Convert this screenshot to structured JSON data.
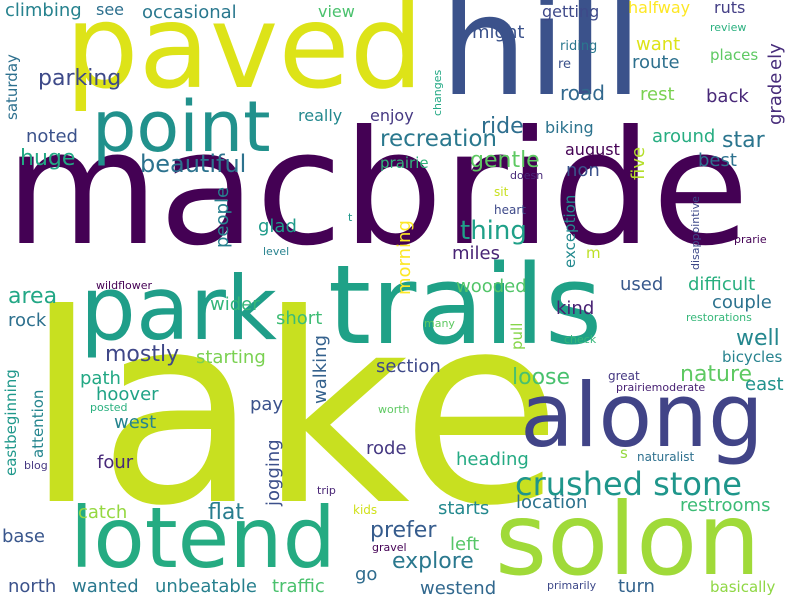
{
  "words": [
    {
      "text": "macbride",
      "color": "#440154",
      "rotate": false
    },
    {
      "text": "lake",
      "color": "#c8e020",
      "rotate": false
    },
    {
      "text": "trails",
      "color": "#1fa187",
      "rotate": false
    },
    {
      "text": "paved",
      "color": "#dde318",
      "rotate": false
    },
    {
      "text": "hill",
      "color": "#3b528b",
      "rotate": false
    },
    {
      "text": "point",
      "color": "#21918c",
      "rotate": false
    },
    {
      "text": "park",
      "color": "#1f9e89",
      "rotate": false
    },
    {
      "text": "along",
      "color": "#414487",
      "rotate": false
    },
    {
      "text": "solon",
      "color": "#a0da39",
      "rotate": false
    },
    {
      "text": "lotend",
      "color": "#25ab82",
      "rotate": false
    },
    {
      "text": "crushed stone",
      "color": "#1f968b",
      "rotate": false
    },
    {
      "text": "recreation",
      "color": "#2a788e",
      "rotate": false
    },
    {
      "text": "beautiful",
      "color": "#2c728e",
      "rotate": false
    },
    {
      "text": "huge",
      "color": "#22a884",
      "rotate": false
    },
    {
      "text": "gentle",
      "color": "#5ec962",
      "rotate": false
    },
    {
      "text": "thing",
      "color": "#1fa088",
      "rotate": false
    },
    {
      "text": "explore",
      "color": "#2a788e",
      "rotate": false
    },
    {
      "text": "prefer",
      "color": "#365c8d",
      "rotate": false
    },
    {
      "text": "nature",
      "color": "#5ec962",
      "rotate": false
    },
    {
      "text": "loose",
      "color": "#48c16e",
      "rotate": false
    },
    {
      "text": "mostly",
      "color": "#3f4788",
      "rotate": false
    },
    {
      "text": "area",
      "color": "#22a785",
      "rotate": false
    },
    {
      "text": "flat",
      "color": "#287d8e",
      "rotate": false
    },
    {
      "text": "ride",
      "color": "#2e6e8e",
      "rotate": false
    },
    {
      "text": "parking",
      "color": "#3e4a89",
      "rotate": false
    },
    {
      "text": "road",
      "color": "#31688e",
      "rotate": false
    },
    {
      "text": "route",
      "color": "#2d708e",
      "rotate": false
    },
    {
      "text": "rest",
      "color": "#7ad151",
      "rotate": false
    },
    {
      "text": "back",
      "color": "#482878",
      "rotate": false
    },
    {
      "text": "star",
      "color": "#2b758e",
      "rotate": false
    },
    {
      "text": "grade",
      "color": "#472c7a",
      "rotate": true
    },
    {
      "text": "ely",
      "color": "#472d7b",
      "rotate": true
    },
    {
      "text": "around",
      "color": "#27ad81",
      "rotate": false
    },
    {
      "text": "best",
      "color": "#2d718e",
      "rotate": false
    },
    {
      "text": "five",
      "color": "#b5de2b",
      "rotate": true
    },
    {
      "text": "august",
      "color": "#440154",
      "rotate": false
    },
    {
      "text": "biking",
      "color": "#2c738e",
      "rotate": false
    },
    {
      "text": "non",
      "color": "#3b518b",
      "rotate": false
    },
    {
      "text": "miles",
      "color": "#482475",
      "rotate": false
    },
    {
      "text": "wooded",
      "color": "#52c569",
      "rotate": false
    },
    {
      "text": "kind",
      "color": "#482173",
      "rotate": false
    },
    {
      "text": "used",
      "color": "#38598c",
      "rotate": false
    },
    {
      "text": "difficult",
      "color": "#29af7f",
      "rotate": false
    },
    {
      "text": "couple",
      "color": "#2c728e",
      "rotate": false
    },
    {
      "text": "well",
      "color": "#24878e",
      "rotate": false
    },
    {
      "text": "east",
      "color": "#20928c",
      "rotate": false
    },
    {
      "text": "bicycles",
      "color": "#26828e",
      "rotate": false
    },
    {
      "text": "short",
      "color": "#3dbc74",
      "rotate": false
    },
    {
      "text": "starting",
      "color": "#7ad151",
      "rotate": false
    },
    {
      "text": "section",
      "color": "#3e4989",
      "rotate": false
    },
    {
      "text": "path",
      "color": "#22a884",
      "rotate": false
    },
    {
      "text": "hoover",
      "color": "#20a386",
      "rotate": false
    },
    {
      "text": "pay",
      "color": "#3b528b",
      "rotate": false
    },
    {
      "text": "west",
      "color": "#25848e",
      "rotate": false
    },
    {
      "text": "walking",
      "color": "#34618d",
      "rotate": true
    },
    {
      "text": "rode",
      "color": "#453882",
      "rotate": false
    },
    {
      "text": "four",
      "color": "#482979",
      "rotate": false
    },
    {
      "text": "heading",
      "color": "#24aa83",
      "rotate": false
    },
    {
      "text": "jogging",
      "color": "#3c508b",
      "rotate": true
    },
    {
      "text": "location",
      "color": "#2c728e",
      "rotate": false
    },
    {
      "text": "starts",
      "color": "#23888e",
      "rotate": false
    },
    {
      "text": "restrooms",
      "color": "#3bbb75",
      "rotate": false
    },
    {
      "text": "catch",
      "color": "#95d840",
      "rotate": false
    },
    {
      "text": "base",
      "color": "#39568c",
      "rotate": false
    },
    {
      "text": "left",
      "color": "#56c667",
      "rotate": false
    },
    {
      "text": "north",
      "color": "#3b528b",
      "rotate": false
    },
    {
      "text": "wanted",
      "color": "#2a788e",
      "rotate": false
    },
    {
      "text": "unbeatable",
      "color": "#27808e",
      "rotate": false
    },
    {
      "text": "traffic",
      "color": "#4ac16d",
      "rotate": false
    },
    {
      "text": "go",
      "color": "#2f6c8e",
      "rotate": false
    },
    {
      "text": "westend",
      "color": "#31688e",
      "rotate": false
    },
    {
      "text": "turn",
      "color": "#33638d",
      "rotate": false
    },
    {
      "text": "basically",
      "color": "#8fd744",
      "rotate": false
    },
    {
      "text": "primarily",
      "color": "#3e4989",
      "rotate": false
    },
    {
      "text": "gravel",
      "color": "#440154",
      "rotate": false
    },
    {
      "text": "kids",
      "color": "#d0e11c",
      "rotate": false
    },
    {
      "text": "trip",
      "color": "#482475",
      "rotate": false
    },
    {
      "text": "blog",
      "color": "#453781",
      "rotate": false
    },
    {
      "text": "eastbeginning",
      "color": "#1f988b",
      "rotate": true
    },
    {
      "text": "attention",
      "color": "#25858e",
      "rotate": true
    },
    {
      "text": "rock",
      "color": "#2d708e",
      "rotate": false
    },
    {
      "text": "wider",
      "color": "#34b679",
      "rotate": false
    },
    {
      "text": "people",
      "color": "#27808e",
      "rotate": true
    },
    {
      "text": "glad",
      "color": "#1e9b8a",
      "rotate": false
    },
    {
      "text": "morning",
      "color": "#fde725",
      "rotate": true
    },
    {
      "text": "wildflower",
      "color": "#440154",
      "rotate": false
    },
    {
      "text": "level",
      "color": "#26828e",
      "rotate": false
    },
    {
      "text": "heart",
      "color": "#3e4989",
      "rotate": false
    },
    {
      "text": "exception",
      "color": "#23898e",
      "rotate": true
    },
    {
      "text": "sit",
      "color": "#c8e020",
      "rotate": false
    },
    {
      "text": "doesn",
      "color": "#482979",
      "rotate": false
    },
    {
      "text": "m",
      "color": "#bddf26",
      "rotate": false
    },
    {
      "text": "t",
      "color": "#1f978b",
      "rotate": false
    },
    {
      "text": "pull",
      "color": "#86d549",
      "rotate": true
    },
    {
      "text": "many",
      "color": "#5ec962",
      "rotate": false
    },
    {
      "text": "check",
      "color": "#35b779",
      "rotate": false
    },
    {
      "text": "great",
      "color": "#453882",
      "rotate": false
    },
    {
      "text": "prairiemoderate",
      "color": "#482173",
      "rotate": false
    },
    {
      "text": "naturalist",
      "color": "#2d708e",
      "rotate": false
    },
    {
      "text": "s",
      "color": "#95d840",
      "rotate": false
    },
    {
      "text": "worth",
      "color": "#5ec962",
      "rotate": false
    },
    {
      "text": "posted",
      "color": "#2ab07f",
      "rotate": false
    },
    {
      "text": "prairie",
      "color": "#31b57b",
      "rotate": false
    },
    {
      "text": "noted",
      "color": "#3b528b",
      "rotate": false
    },
    {
      "text": "enjoy",
      "color": "#453882",
      "rotate": false
    },
    {
      "text": "really",
      "color": "#23888e",
      "rotate": false
    },
    {
      "text": "saturday",
      "color": "#2d708e",
      "rotate": true
    },
    {
      "text": "climbing",
      "color": "#26828e",
      "rotate": false
    },
    {
      "text": "see",
      "color": "#2d708e",
      "rotate": false
    },
    {
      "text": "occasional",
      "color": "#2a788e",
      "rotate": false
    },
    {
      "text": "view",
      "color": "#4ac16d",
      "rotate": false
    },
    {
      "text": "might",
      "color": "#3b528b",
      "rotate": false
    },
    {
      "text": "getting",
      "color": "#3e4989",
      "rotate": false
    },
    {
      "text": "halfway",
      "color": "#fde725",
      "rotate": false
    },
    {
      "text": "ruts",
      "color": "#433e85",
      "rotate": false
    },
    {
      "text": "review",
      "color": "#2ab07f",
      "rotate": false
    },
    {
      "text": "want",
      "color": "#dde318",
      "rotate": false
    },
    {
      "text": "riding",
      "color": "#2a788e",
      "rotate": false
    },
    {
      "text": "re",
      "color": "#3b528b",
      "rotate": false
    },
    {
      "text": "places",
      "color": "#5ec962",
      "rotate": false
    },
    {
      "text": "changes",
      "color": "#22a884",
      "rotate": true
    },
    {
      "text": "disappointive",
      "color": "#3e4989",
      "rotate": true
    },
    {
      "text": "prarie",
      "color": "#440154",
      "rotate": false
    },
    {
      "text": "restorations",
      "color": "#35b779",
      "rotate": false
    }
  ]
}
